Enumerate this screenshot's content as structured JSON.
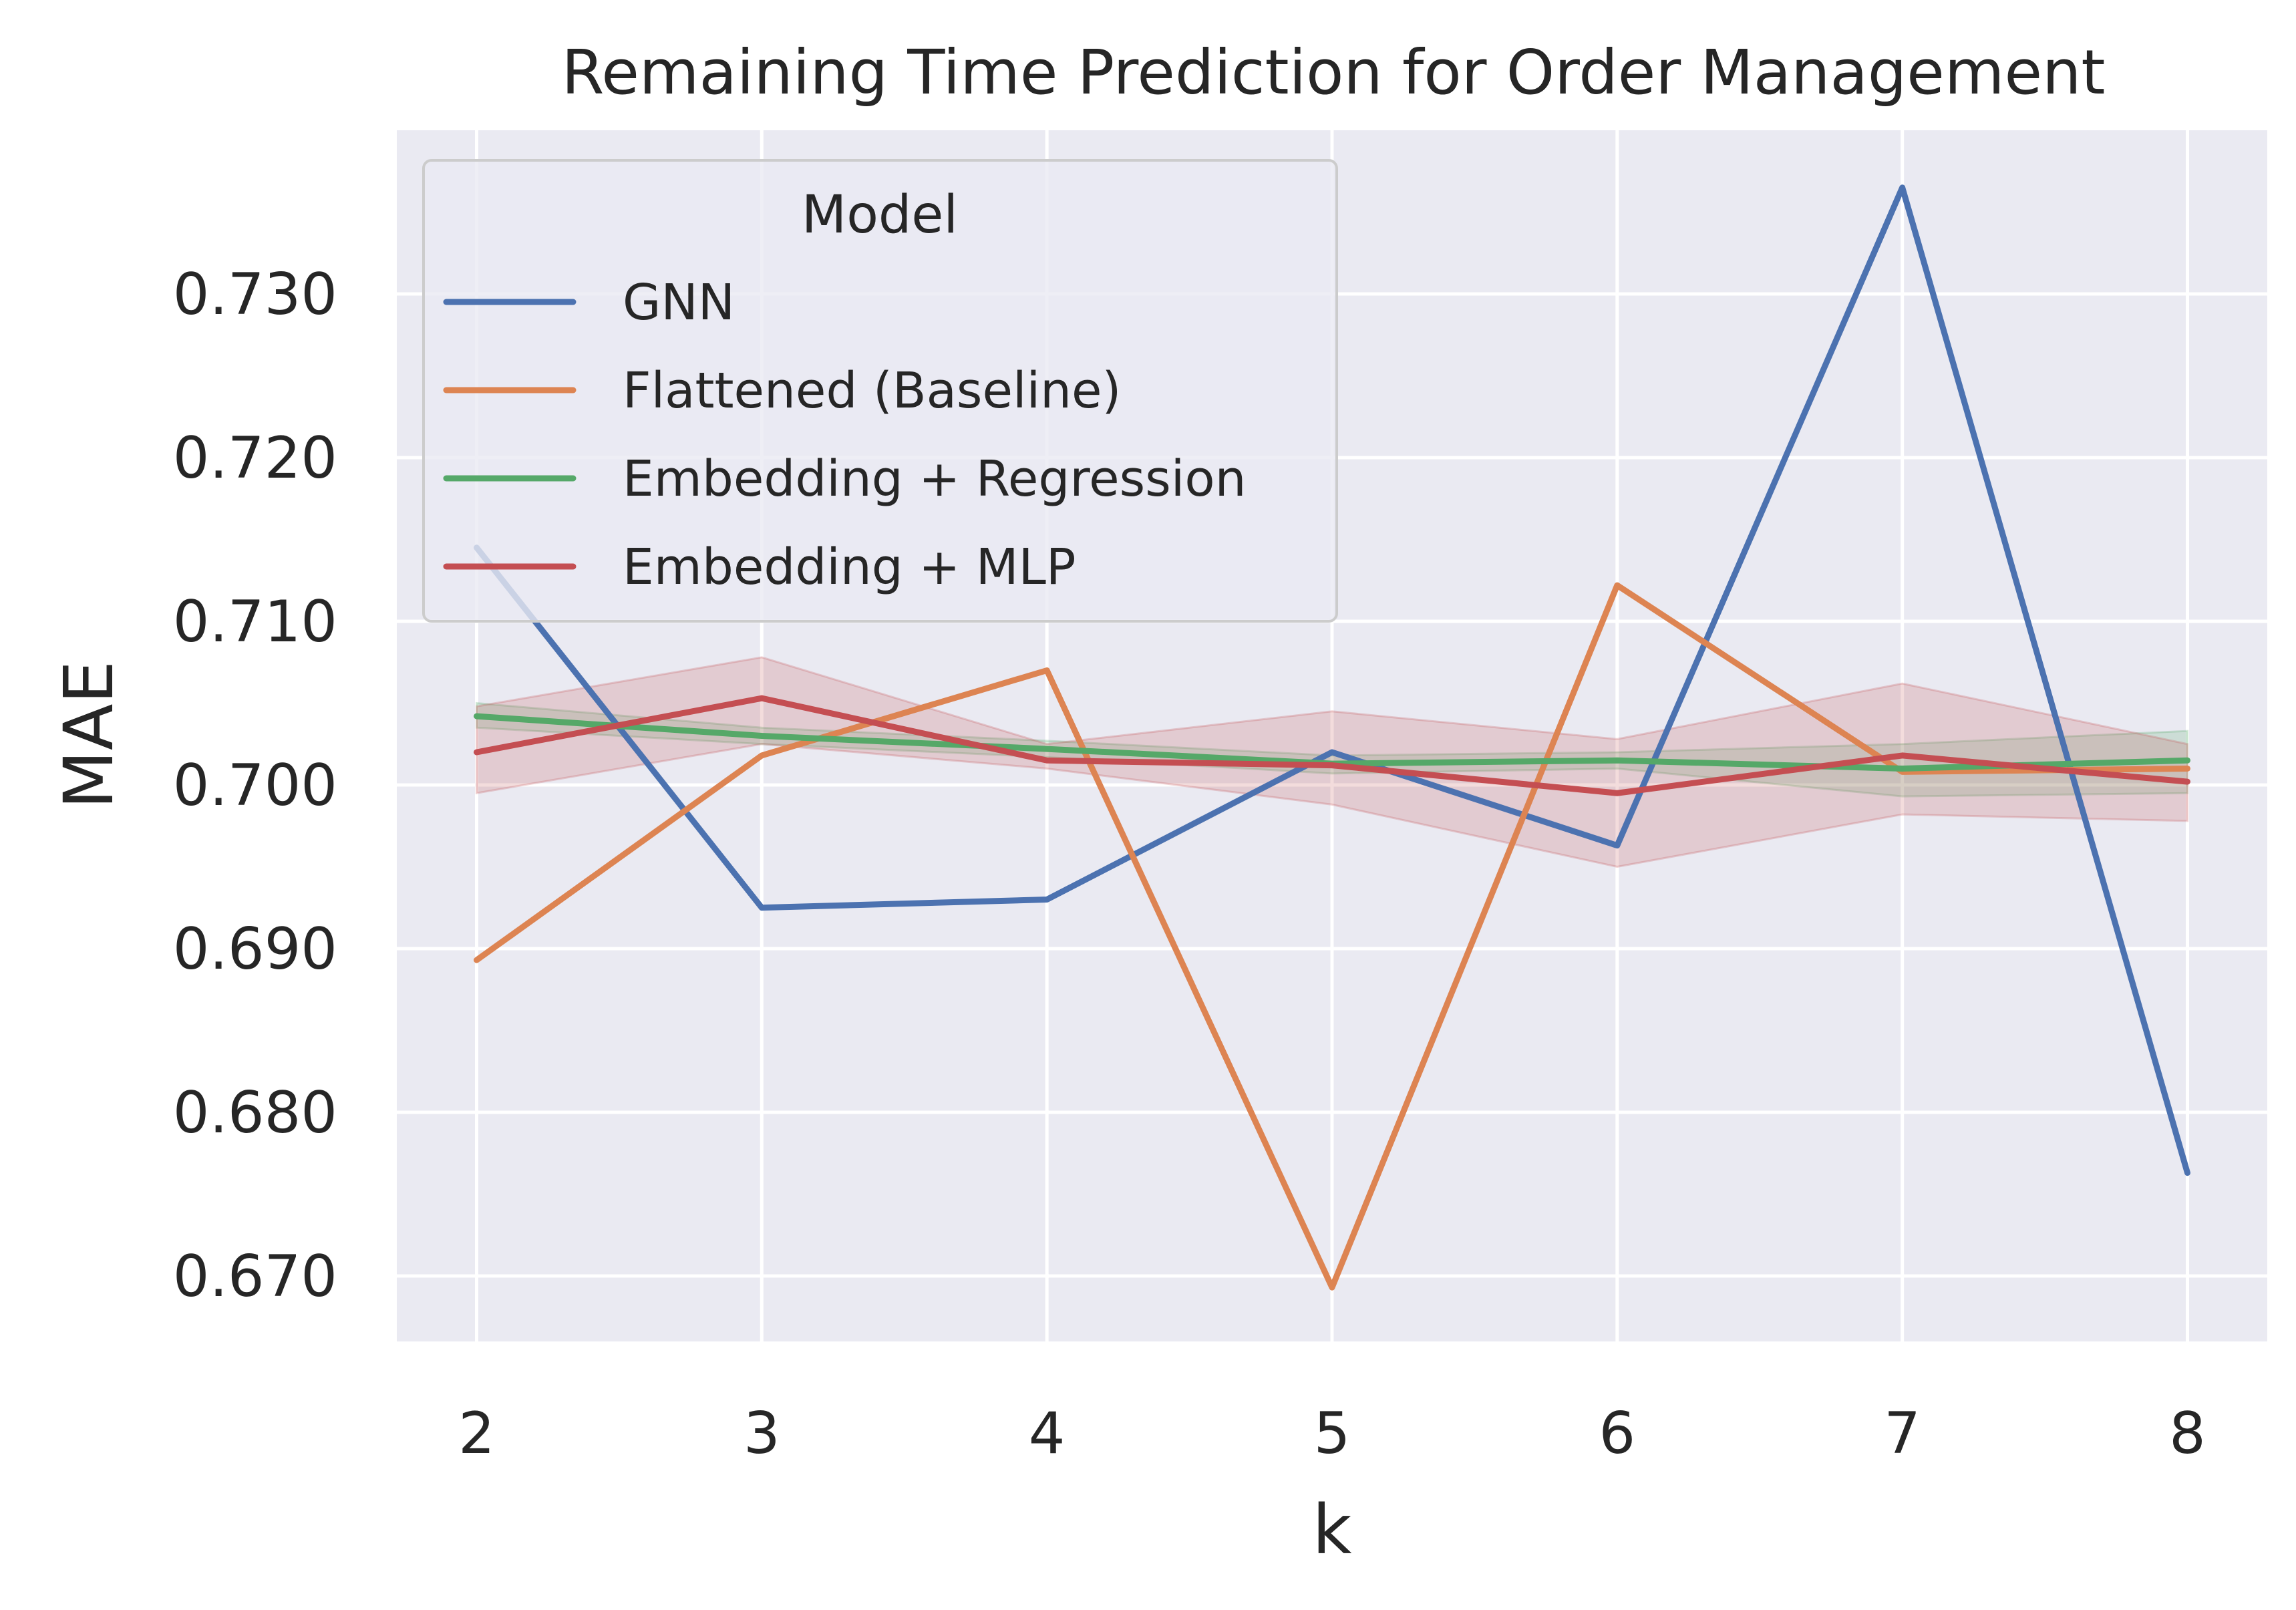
{
  "chart_data": {
    "type": "line",
    "title": "Remaining Time Prediction for Order Management",
    "xlabel": "k",
    "ylabel": "MAE",
    "x": [
      2,
      3,
      4,
      5,
      6,
      7,
      8
    ],
    "xlim": [
      1.72,
      8.28
    ],
    "ylim": [
      0.666,
      0.74
    ],
    "yticks": [
      0.67,
      0.68,
      0.69,
      0.7,
      0.71,
      0.72,
      0.73
    ],
    "ytick_labels": [
      "0.670",
      "0.680",
      "0.690",
      "0.700",
      "0.710",
      "0.720",
      "0.730"
    ],
    "xtick_labels": [
      "2",
      "3",
      "4",
      "5",
      "6",
      "7",
      "8"
    ],
    "grid": true,
    "legend": {
      "title": "Model",
      "placement": "top-left"
    },
    "series": [
      {
        "name": "GNN",
        "color": "#4c72b0",
        "values": [
          0.7145,
          0.6925,
          0.693,
          0.702,
          0.6963,
          0.7365,
          0.6763
        ]
      },
      {
        "name": "Flattened (Baseline)",
        "color": "#dd8452",
        "values": [
          0.6893,
          0.7018,
          0.707,
          0.6693,
          0.7122,
          0.7008,
          0.701
        ]
      },
      {
        "name": "Embedding + Regression",
        "color": "#55a868",
        "values": [
          0.7042,
          0.703,
          0.7022,
          0.7013,
          0.7015,
          0.701,
          0.7015
        ],
        "ci_low": [
          0.7035,
          0.7025,
          0.7017,
          0.7007,
          0.701,
          0.6993,
          0.6995
        ],
        "ci_high": [
          0.705,
          0.7035,
          0.7027,
          0.7018,
          0.702,
          0.7025,
          0.7033
        ]
      },
      {
        "name": "Embedding + MLP",
        "color": "#c44e52",
        "values": [
          0.702,
          0.7053,
          0.7015,
          0.7012,
          0.6995,
          0.7018,
          0.7002
        ],
        "ci_low": [
          0.6995,
          0.7025,
          0.701,
          0.6988,
          0.695,
          0.6982,
          0.6978
        ],
        "ci_high": [
          0.7048,
          0.7078,
          0.7025,
          0.7045,
          0.7028,
          0.7062,
          0.7025
        ]
      }
    ]
  }
}
